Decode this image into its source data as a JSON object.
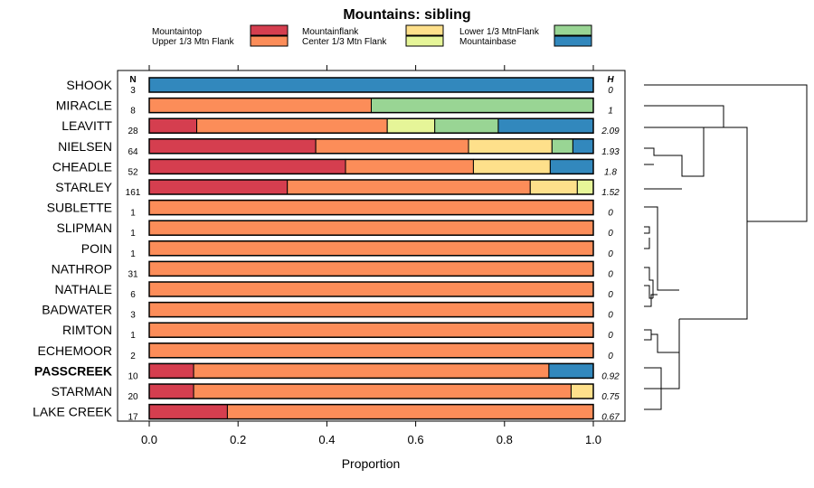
{
  "chart_data": {
    "type": "stacked-bar",
    "title": "Mountains: sibling",
    "xlabel": "Proportion",
    "xlim": [
      0,
      1
    ],
    "xticks": [
      "0.0",
      "0.2",
      "0.4",
      "0.6",
      "0.8",
      "1.0"
    ],
    "n_header": "N",
    "h_header": "H",
    "legend": [
      {
        "name": "Mountaintop",
        "color": "#d53e4f"
      },
      {
        "name": "Upper 1/3 Mtn Flank",
        "color": "#fc8d59"
      },
      {
        "name": "Mountainflank",
        "color": "#fee08b"
      },
      {
        "name": "Center 1/3 Mtn Flank",
        "color": "#e6f598"
      },
      {
        "name": "Lower 1/3 MtnFlank",
        "color": "#99d594"
      },
      {
        "name": "Mountainbase",
        "color": "#3288bd"
      }
    ],
    "rows": [
      {
        "label": "SHOOK",
        "n": "3",
        "h": "0",
        "bold": false,
        "segments": [
          {
            "cat": 5,
            "value": 1.0
          }
        ]
      },
      {
        "label": "MIRACLE",
        "n": "8",
        "h": "1",
        "bold": false,
        "segments": [
          {
            "cat": 1,
            "value": 0.5
          },
          {
            "cat": 4,
            "value": 0.5
          }
        ]
      },
      {
        "label": "LEAVITT",
        "n": "28",
        "h": "2.09",
        "bold": false,
        "segments": [
          {
            "cat": 0,
            "value": 0.107
          },
          {
            "cat": 1,
            "value": 0.429
          },
          {
            "cat": 3,
            "value": 0.107
          },
          {
            "cat": 4,
            "value": 0.143
          },
          {
            "cat": 5,
            "value": 0.214
          }
        ]
      },
      {
        "label": "NIELSEN",
        "n": "64",
        "h": "1.93",
        "bold": false,
        "segments": [
          {
            "cat": 0,
            "value": 0.375
          },
          {
            "cat": 1,
            "value": 0.344
          },
          {
            "cat": 2,
            "value": 0.188
          },
          {
            "cat": 4,
            "value": 0.047
          },
          {
            "cat": 5,
            "value": 0.046
          }
        ]
      },
      {
        "label": "CHEADLE",
        "n": "52",
        "h": "1.8",
        "bold": false,
        "segments": [
          {
            "cat": 0,
            "value": 0.442
          },
          {
            "cat": 1,
            "value": 0.288
          },
          {
            "cat": 2,
            "value": 0.173
          },
          {
            "cat": 5,
            "value": 0.097
          }
        ]
      },
      {
        "label": "STARLEY",
        "n": "161",
        "h": "1.52",
        "bold": false,
        "segments": [
          {
            "cat": 0,
            "value": 0.311
          },
          {
            "cat": 1,
            "value": 0.547
          },
          {
            "cat": 2,
            "value": 0.106
          },
          {
            "cat": 3,
            "value": 0.036
          }
        ]
      },
      {
        "label": "SUBLETTE",
        "n": "1",
        "h": "0",
        "bold": false,
        "segments": [
          {
            "cat": 1,
            "value": 1.0
          }
        ]
      },
      {
        "label": "SLIPMAN",
        "n": "1",
        "h": "0",
        "bold": false,
        "segments": [
          {
            "cat": 1,
            "value": 1.0
          }
        ]
      },
      {
        "label": "POIN",
        "n": "1",
        "h": "0",
        "bold": false,
        "segments": [
          {
            "cat": 1,
            "value": 1.0
          }
        ]
      },
      {
        "label": "NATHROP",
        "n": "31",
        "h": "0",
        "bold": false,
        "segments": [
          {
            "cat": 1,
            "value": 1.0
          }
        ]
      },
      {
        "label": "NATHALE",
        "n": "6",
        "h": "0",
        "bold": false,
        "segments": [
          {
            "cat": 1,
            "value": 1.0
          }
        ]
      },
      {
        "label": "BADWATER",
        "n": "3",
        "h": "0",
        "bold": false,
        "segments": [
          {
            "cat": 1,
            "value": 1.0
          }
        ]
      },
      {
        "label": "RIMTON",
        "n": "1",
        "h": "0",
        "bold": false,
        "segments": [
          {
            "cat": 1,
            "value": 1.0
          }
        ]
      },
      {
        "label": "ECHEMOOR",
        "n": "2",
        "h": "0",
        "bold": false,
        "segments": [
          {
            "cat": 1,
            "value": 1.0
          }
        ]
      },
      {
        "label": "PASSCREEK",
        "n": "10",
        "h": "0.92",
        "bold": true,
        "segments": [
          {
            "cat": 0,
            "value": 0.1
          },
          {
            "cat": 1,
            "value": 0.8
          },
          {
            "cat": 5,
            "value": 0.1
          }
        ]
      },
      {
        "label": "STARMAN",
        "n": "20",
        "h": "0.75",
        "bold": false,
        "segments": [
          {
            "cat": 0,
            "value": 0.1
          },
          {
            "cat": 1,
            "value": 0.85
          },
          {
            "cat": 2,
            "value": 0.05
          }
        ]
      },
      {
        "label": "LAKE CREEK",
        "n": "17",
        "h": "0.67",
        "bold": false,
        "segments": [
          {
            "cat": 0,
            "value": 0.176
          },
          {
            "cat": 1,
            "value": 0.824
          }
        ]
      }
    ]
  }
}
